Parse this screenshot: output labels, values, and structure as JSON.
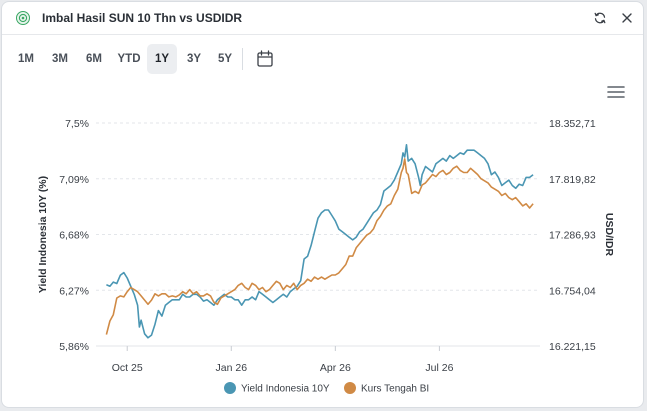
{
  "header": {
    "title": "Imbal Hasil SUN 10 Thn vs USDIDR",
    "logo_icon": "currency-badge-icon",
    "refresh_icon": "refresh-icon",
    "close_icon": "close-icon"
  },
  "tabs": [
    {
      "label": "1M",
      "active": false
    },
    {
      "label": "3M",
      "active": false
    },
    {
      "label": "6M",
      "active": false
    },
    {
      "label": "YTD",
      "active": false
    },
    {
      "label": "1Y",
      "active": true
    },
    {
      "label": "3Y",
      "active": false
    },
    {
      "label": "5Y",
      "active": false
    }
  ],
  "calendar_icon": "calendar-icon",
  "menu_icon": "hamburger-menu-icon",
  "colors": {
    "yield": "#4a96b3",
    "kurs": "#d08a45",
    "grid": "#e3e6ea"
  },
  "chart_data": {
    "type": "line",
    "title": "",
    "ylabel_left": "Yield Indonesia 10Y (%)",
    "ylabel_right": "USD/IDR",
    "y_left_ticks": [
      "7,5%",
      "7,09%",
      "6,68%",
      "6,27%",
      "5,86%"
    ],
    "y_left_range": [
      5.86,
      7.5
    ],
    "y_right_ticks": [
      "18.352,71",
      "17.819,82",
      "17.286,93",
      "16.754,04",
      "16.221,15"
    ],
    "y_right_range": [
      16221.15,
      18352.71
    ],
    "x_range": [
      0,
      12.8
    ],
    "x_ticks": [
      {
        "label": "Oct 25",
        "x": 0.9
      },
      {
        "label": "Jan 26",
        "x": 3.9
      },
      {
        "label": "Apr 26",
        "x": 6.9
      },
      {
        "label": "Jul 26",
        "x": 9.9
      }
    ],
    "legend_position": "bottom",
    "grid": "dashed-horizontal",
    "series": [
      {
        "name": "Yield Indonesia 10Y",
        "axis": "left",
        "points": [
          [
            0.3,
            6.31
          ],
          [
            0.4,
            6.3
          ],
          [
            0.5,
            6.33
          ],
          [
            0.6,
            6.32
          ],
          [
            0.7,
            6.38
          ],
          [
            0.8,
            6.4
          ],
          [
            0.9,
            6.36
          ],
          [
            1.0,
            6.3
          ],
          [
            1.1,
            6.24
          ],
          [
            1.2,
            6.16
          ],
          [
            1.25,
            6.0
          ],
          [
            1.3,
            6.05
          ],
          [
            1.4,
            5.95
          ],
          [
            1.5,
            5.92
          ],
          [
            1.6,
            5.94
          ],
          [
            1.7,
            6.02
          ],
          [
            1.8,
            6.12
          ],
          [
            1.9,
            6.08
          ],
          [
            2.0,
            6.16
          ],
          [
            2.1,
            6.18
          ],
          [
            2.2,
            6.2
          ],
          [
            2.3,
            6.2
          ],
          [
            2.4,
            6.2
          ],
          [
            2.5,
            6.24
          ],
          [
            2.6,
            6.22
          ],
          [
            2.7,
            6.22
          ],
          [
            2.8,
            6.24
          ],
          [
            2.9,
            6.24
          ],
          [
            3.0,
            6.22
          ],
          [
            3.1,
            6.19
          ],
          [
            3.2,
            6.2
          ],
          [
            3.3,
            6.18
          ],
          [
            3.4,
            6.16
          ],
          [
            3.5,
            6.2
          ],
          [
            3.6,
            6.22
          ],
          [
            3.7,
            6.24
          ],
          [
            3.8,
            6.22
          ],
          [
            3.9,
            6.22
          ],
          [
            4.0,
            6.2
          ],
          [
            4.1,
            6.2
          ],
          [
            4.2,
            6.16
          ],
          [
            4.3,
            6.2
          ],
          [
            4.4,
            6.2
          ],
          [
            4.5,
            6.22
          ],
          [
            4.6,
            6.2
          ],
          [
            4.7,
            6.26
          ],
          [
            4.8,
            6.24
          ],
          [
            4.9,
            6.22
          ],
          [
            5.0,
            6.2
          ],
          [
            5.1,
            6.18
          ],
          [
            5.2,
            6.2
          ],
          [
            5.3,
            6.22
          ],
          [
            5.4,
            6.24
          ],
          [
            5.5,
            6.22
          ],
          [
            5.6,
            6.26
          ],
          [
            5.7,
            6.28
          ],
          [
            5.8,
            6.3
          ],
          [
            5.9,
            6.34
          ],
          [
            6.0,
            6.5
          ],
          [
            6.1,
            6.52
          ],
          [
            6.2,
            6.6
          ],
          [
            6.3,
            6.7
          ],
          [
            6.4,
            6.8
          ],
          [
            6.5,
            6.84
          ],
          [
            6.6,
            6.86
          ],
          [
            6.7,
            6.86
          ],
          [
            6.8,
            6.82
          ],
          [
            6.9,
            6.78
          ],
          [
            7.0,
            6.72
          ],
          [
            7.1,
            6.7
          ],
          [
            7.2,
            6.68
          ],
          [
            7.3,
            6.66
          ],
          [
            7.4,
            6.64
          ],
          [
            7.5,
            6.66
          ],
          [
            7.6,
            6.7
          ],
          [
            7.7,
            6.72
          ],
          [
            7.8,
            6.76
          ],
          [
            7.9,
            6.8
          ],
          [
            8.0,
            6.84
          ],
          [
            8.1,
            6.86
          ],
          [
            8.2,
            6.9
          ],
          [
            8.3,
            7.0
          ],
          [
            8.4,
            7.02
          ],
          [
            8.5,
            7.04
          ],
          [
            8.6,
            7.08
          ],
          [
            8.7,
            7.14
          ],
          [
            8.8,
            7.2
          ],
          [
            8.85,
            7.28
          ],
          [
            8.9,
            7.25
          ],
          [
            8.95,
            7.34
          ],
          [
            9.0,
            7.22
          ],
          [
            9.1,
            7.24
          ],
          [
            9.2,
            7.2
          ],
          [
            9.3,
            7.1
          ],
          [
            9.35,
            7.04
          ],
          [
            9.4,
            7.12
          ],
          [
            9.5,
            7.18
          ],
          [
            9.6,
            7.16
          ],
          [
            9.7,
            7.14
          ],
          [
            9.8,
            7.2
          ],
          [
            9.9,
            7.22
          ],
          [
            10.0,
            7.24
          ],
          [
            10.1,
            7.22
          ],
          [
            10.2,
            7.26
          ],
          [
            10.3,
            7.24
          ],
          [
            10.4,
            7.26
          ],
          [
            10.5,
            7.28
          ],
          [
            10.6,
            7.27
          ],
          [
            10.7,
            7.3
          ],
          [
            10.8,
            7.3
          ],
          [
            10.9,
            7.3
          ],
          [
            11.0,
            7.28
          ],
          [
            11.1,
            7.26
          ],
          [
            11.2,
            7.24
          ],
          [
            11.3,
            7.2
          ],
          [
            11.4,
            7.12
          ],
          [
            11.5,
            7.14
          ],
          [
            11.6,
            7.1
          ],
          [
            11.7,
            7.04
          ],
          [
            11.8,
            7.06
          ],
          [
            11.9,
            7.08
          ],
          [
            12.0,
            7.04
          ],
          [
            12.1,
            7.02
          ],
          [
            12.2,
            7.05
          ],
          [
            12.3,
            7.04
          ],
          [
            12.4,
            7.1
          ],
          [
            12.5,
            7.1
          ],
          [
            12.6,
            7.12
          ]
        ]
      },
      {
        "name": "Kurs Tengah BI",
        "axis": "right",
        "points": [
          [
            0.3,
            16330
          ],
          [
            0.4,
            16460
          ],
          [
            0.5,
            16520
          ],
          [
            0.6,
            16680
          ],
          [
            0.7,
            16700
          ],
          [
            0.8,
            16690
          ],
          [
            0.9,
            16740
          ],
          [
            1.0,
            16780
          ],
          [
            1.1,
            16760
          ],
          [
            1.2,
            16740
          ],
          [
            1.3,
            16700
          ],
          [
            1.4,
            16660
          ],
          [
            1.5,
            16620
          ],
          [
            1.6,
            16660
          ],
          [
            1.7,
            16720
          ],
          [
            1.8,
            16700
          ],
          [
            1.9,
            16720
          ],
          [
            2.0,
            16720
          ],
          [
            2.1,
            16690
          ],
          [
            2.2,
            16700
          ],
          [
            2.3,
            16690
          ],
          [
            2.4,
            16710
          ],
          [
            2.5,
            16740
          ],
          [
            2.6,
            16720
          ],
          [
            2.7,
            16760
          ],
          [
            2.8,
            16720
          ],
          [
            2.9,
            16740
          ],
          [
            3.0,
            16700
          ],
          [
            3.1,
            16700
          ],
          [
            3.2,
            16720
          ],
          [
            3.3,
            16700
          ],
          [
            3.4,
            16640
          ],
          [
            3.5,
            16620
          ],
          [
            3.6,
            16680
          ],
          [
            3.7,
            16700
          ],
          [
            3.8,
            16720
          ],
          [
            3.9,
            16740
          ],
          [
            4.0,
            16760
          ],
          [
            4.1,
            16800
          ],
          [
            4.2,
            16820
          ],
          [
            4.3,
            16780
          ],
          [
            4.4,
            16760
          ],
          [
            4.5,
            16820
          ],
          [
            4.6,
            16800
          ],
          [
            4.7,
            16760
          ],
          [
            4.8,
            16780
          ],
          [
            4.9,
            16740
          ],
          [
            5.0,
            16760
          ],
          [
            5.1,
            16800
          ],
          [
            5.2,
            16840
          ],
          [
            5.3,
            16820
          ],
          [
            5.4,
            16760
          ],
          [
            5.5,
            16800
          ],
          [
            5.6,
            16780
          ],
          [
            5.7,
            16820
          ],
          [
            5.8,
            16760
          ],
          [
            5.9,
            16800
          ],
          [
            6.0,
            16820
          ],
          [
            6.1,
            16860
          ],
          [
            6.2,
            16840
          ],
          [
            6.3,
            16880
          ],
          [
            6.4,
            16860
          ],
          [
            6.5,
            16880
          ],
          [
            6.6,
            16860
          ],
          [
            6.7,
            16880
          ],
          [
            6.8,
            16900
          ],
          [
            6.9,
            16900
          ],
          [
            7.0,
            16920
          ],
          [
            7.1,
            16960
          ],
          [
            7.2,
            17000
          ],
          [
            7.3,
            17080
          ],
          [
            7.4,
            17080
          ],
          [
            7.5,
            17160
          ],
          [
            7.6,
            17200
          ],
          [
            7.7,
            17240
          ],
          [
            7.8,
            17280
          ],
          [
            7.9,
            17300
          ],
          [
            8.0,
            17340
          ],
          [
            8.1,
            17420
          ],
          [
            8.2,
            17460
          ],
          [
            8.3,
            17520
          ],
          [
            8.4,
            17560
          ],
          [
            8.5,
            17580
          ],
          [
            8.6,
            17660
          ],
          [
            8.7,
            17720
          ],
          [
            8.8,
            17880
          ],
          [
            8.85,
            17920
          ],
          [
            8.9,
            18010
          ],
          [
            8.95,
            17880
          ],
          [
            9.0,
            17860
          ],
          [
            9.1,
            17680
          ],
          [
            9.2,
            17700
          ],
          [
            9.3,
            17680
          ],
          [
            9.4,
            17760
          ],
          [
            9.5,
            17780
          ],
          [
            9.6,
            17820
          ],
          [
            9.7,
            17860
          ],
          [
            9.8,
            17840
          ],
          [
            9.9,
            17880
          ],
          [
            10.0,
            17900
          ],
          [
            10.1,
            17860
          ],
          [
            10.2,
            17880
          ],
          [
            10.3,
            17920
          ],
          [
            10.4,
            17940
          ],
          [
            10.5,
            17900
          ],
          [
            10.6,
            17880
          ],
          [
            10.7,
            17880
          ],
          [
            10.8,
            17920
          ],
          [
            10.9,
            17890
          ],
          [
            11.0,
            17860
          ],
          [
            11.1,
            17820
          ],
          [
            11.2,
            17800
          ],
          [
            11.3,
            17780
          ],
          [
            11.4,
            17740
          ],
          [
            11.5,
            17720
          ],
          [
            11.6,
            17700
          ],
          [
            11.7,
            17660
          ],
          [
            11.8,
            17680
          ],
          [
            11.9,
            17640
          ],
          [
            12.0,
            17620
          ],
          [
            12.1,
            17640
          ],
          [
            12.2,
            17600
          ],
          [
            12.3,
            17560
          ],
          [
            12.4,
            17580
          ],
          [
            12.5,
            17540
          ],
          [
            12.6,
            17580
          ]
        ]
      }
    ]
  }
}
